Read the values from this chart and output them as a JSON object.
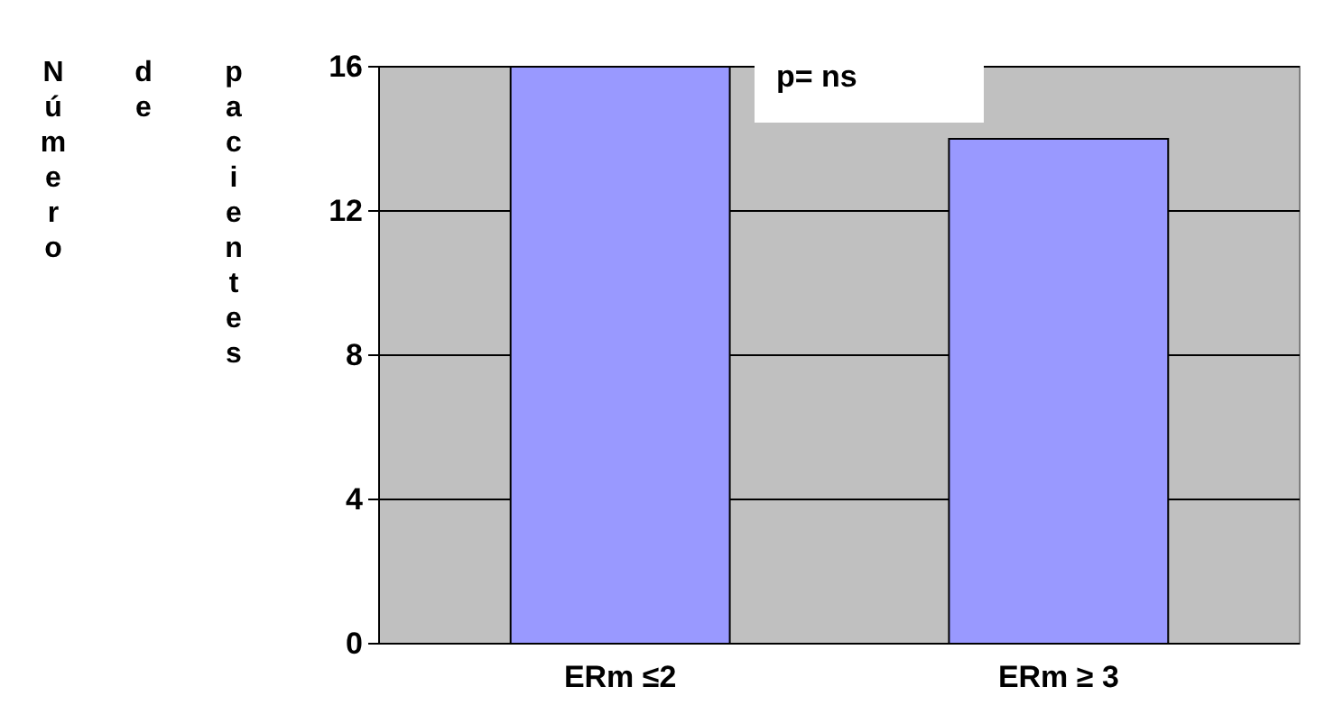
{
  "chart_data": {
    "type": "bar",
    "ylabel": "Número de pacientes",
    "categories": [
      "ERm ≤2",
      "ERm ≥ 3"
    ],
    "values": [
      16,
      14
    ],
    "color": "#9999ff",
    "ylim": [
      0,
      16
    ],
    "yticks": [
      0,
      4,
      8,
      12,
      16
    ],
    "grid": "y",
    "annotations": [
      "p= ns"
    ]
  }
}
